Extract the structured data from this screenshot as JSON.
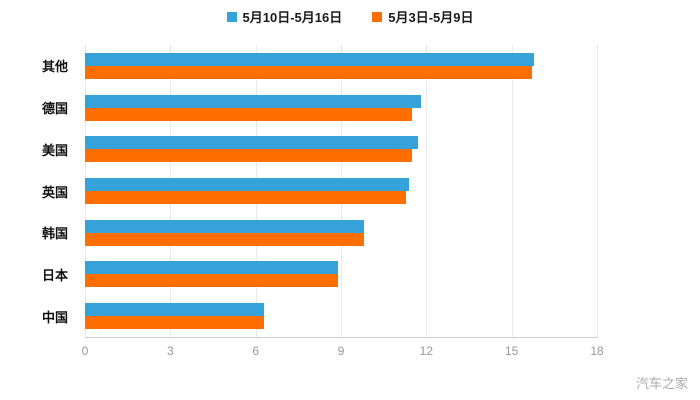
{
  "watermark": "汽车之家",
  "colors": {
    "series_blue": "#36a2da",
    "series_orange": "#ff6e00"
  },
  "chart_data": {
    "type": "bar",
    "orientation": "horizontal",
    "title": "",
    "xlabel": "",
    "ylabel": "",
    "categories": [
      "其他",
      "德国",
      "美国",
      "英国",
      "韩国",
      "日本",
      "中国"
    ],
    "series": [
      {
        "name": "5月10日-5月16日",
        "color": "#36a2da",
        "values": [
          15.8,
          11.8,
          11.7,
          11.4,
          9.8,
          8.9,
          6.3
        ]
      },
      {
        "name": "5月3日-5月9日",
        "color": "#ff6e00",
        "values": [
          15.7,
          11.5,
          11.5,
          11.3,
          9.8,
          8.9,
          6.3
        ]
      }
    ],
    "xlim": [
      0,
      18
    ],
    "xticks": [
      0,
      3,
      6,
      9,
      12,
      15,
      18
    ],
    "grid": true,
    "legend_position": "top"
  }
}
